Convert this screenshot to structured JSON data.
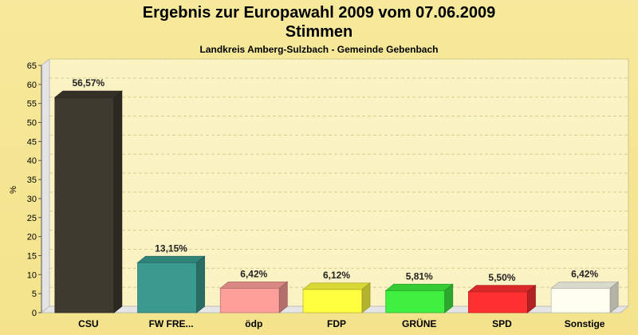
{
  "chart_data": {
    "type": "bar",
    "title": "Ergebnis zur Europawahl 2009 vom 07.06.2009",
    "subtitle": "Stimmen",
    "caption": "Landkreis Amberg-Sulzbach - Gemeinde Gebenbach",
    "ylabel": "%",
    "xlabel": "",
    "ylim": [
      0,
      65
    ],
    "yticks": [
      0,
      5,
      10,
      15,
      20,
      25,
      30,
      35,
      40,
      45,
      50,
      55,
      60,
      65
    ],
    "grid": true,
    "categories": [
      "CSU",
      "FW FRE...",
      "ödp",
      "FDP",
      "GRÜNE",
      "SPD",
      "Sonstige"
    ],
    "values": [
      56.57,
      13.15,
      6.42,
      6.12,
      5.81,
      5.5,
      6.42
    ],
    "value_labels": [
      "56,57%",
      "13,15%",
      "6,42%",
      "6,12%",
      "5,81%",
      "5,50%",
      "6,42%"
    ],
    "colors": [
      "#3e3a30",
      "#3a9a8f",
      "#ff9f99",
      "#ffff40",
      "#40f040",
      "#ff3030",
      "#fffff0"
    ]
  }
}
